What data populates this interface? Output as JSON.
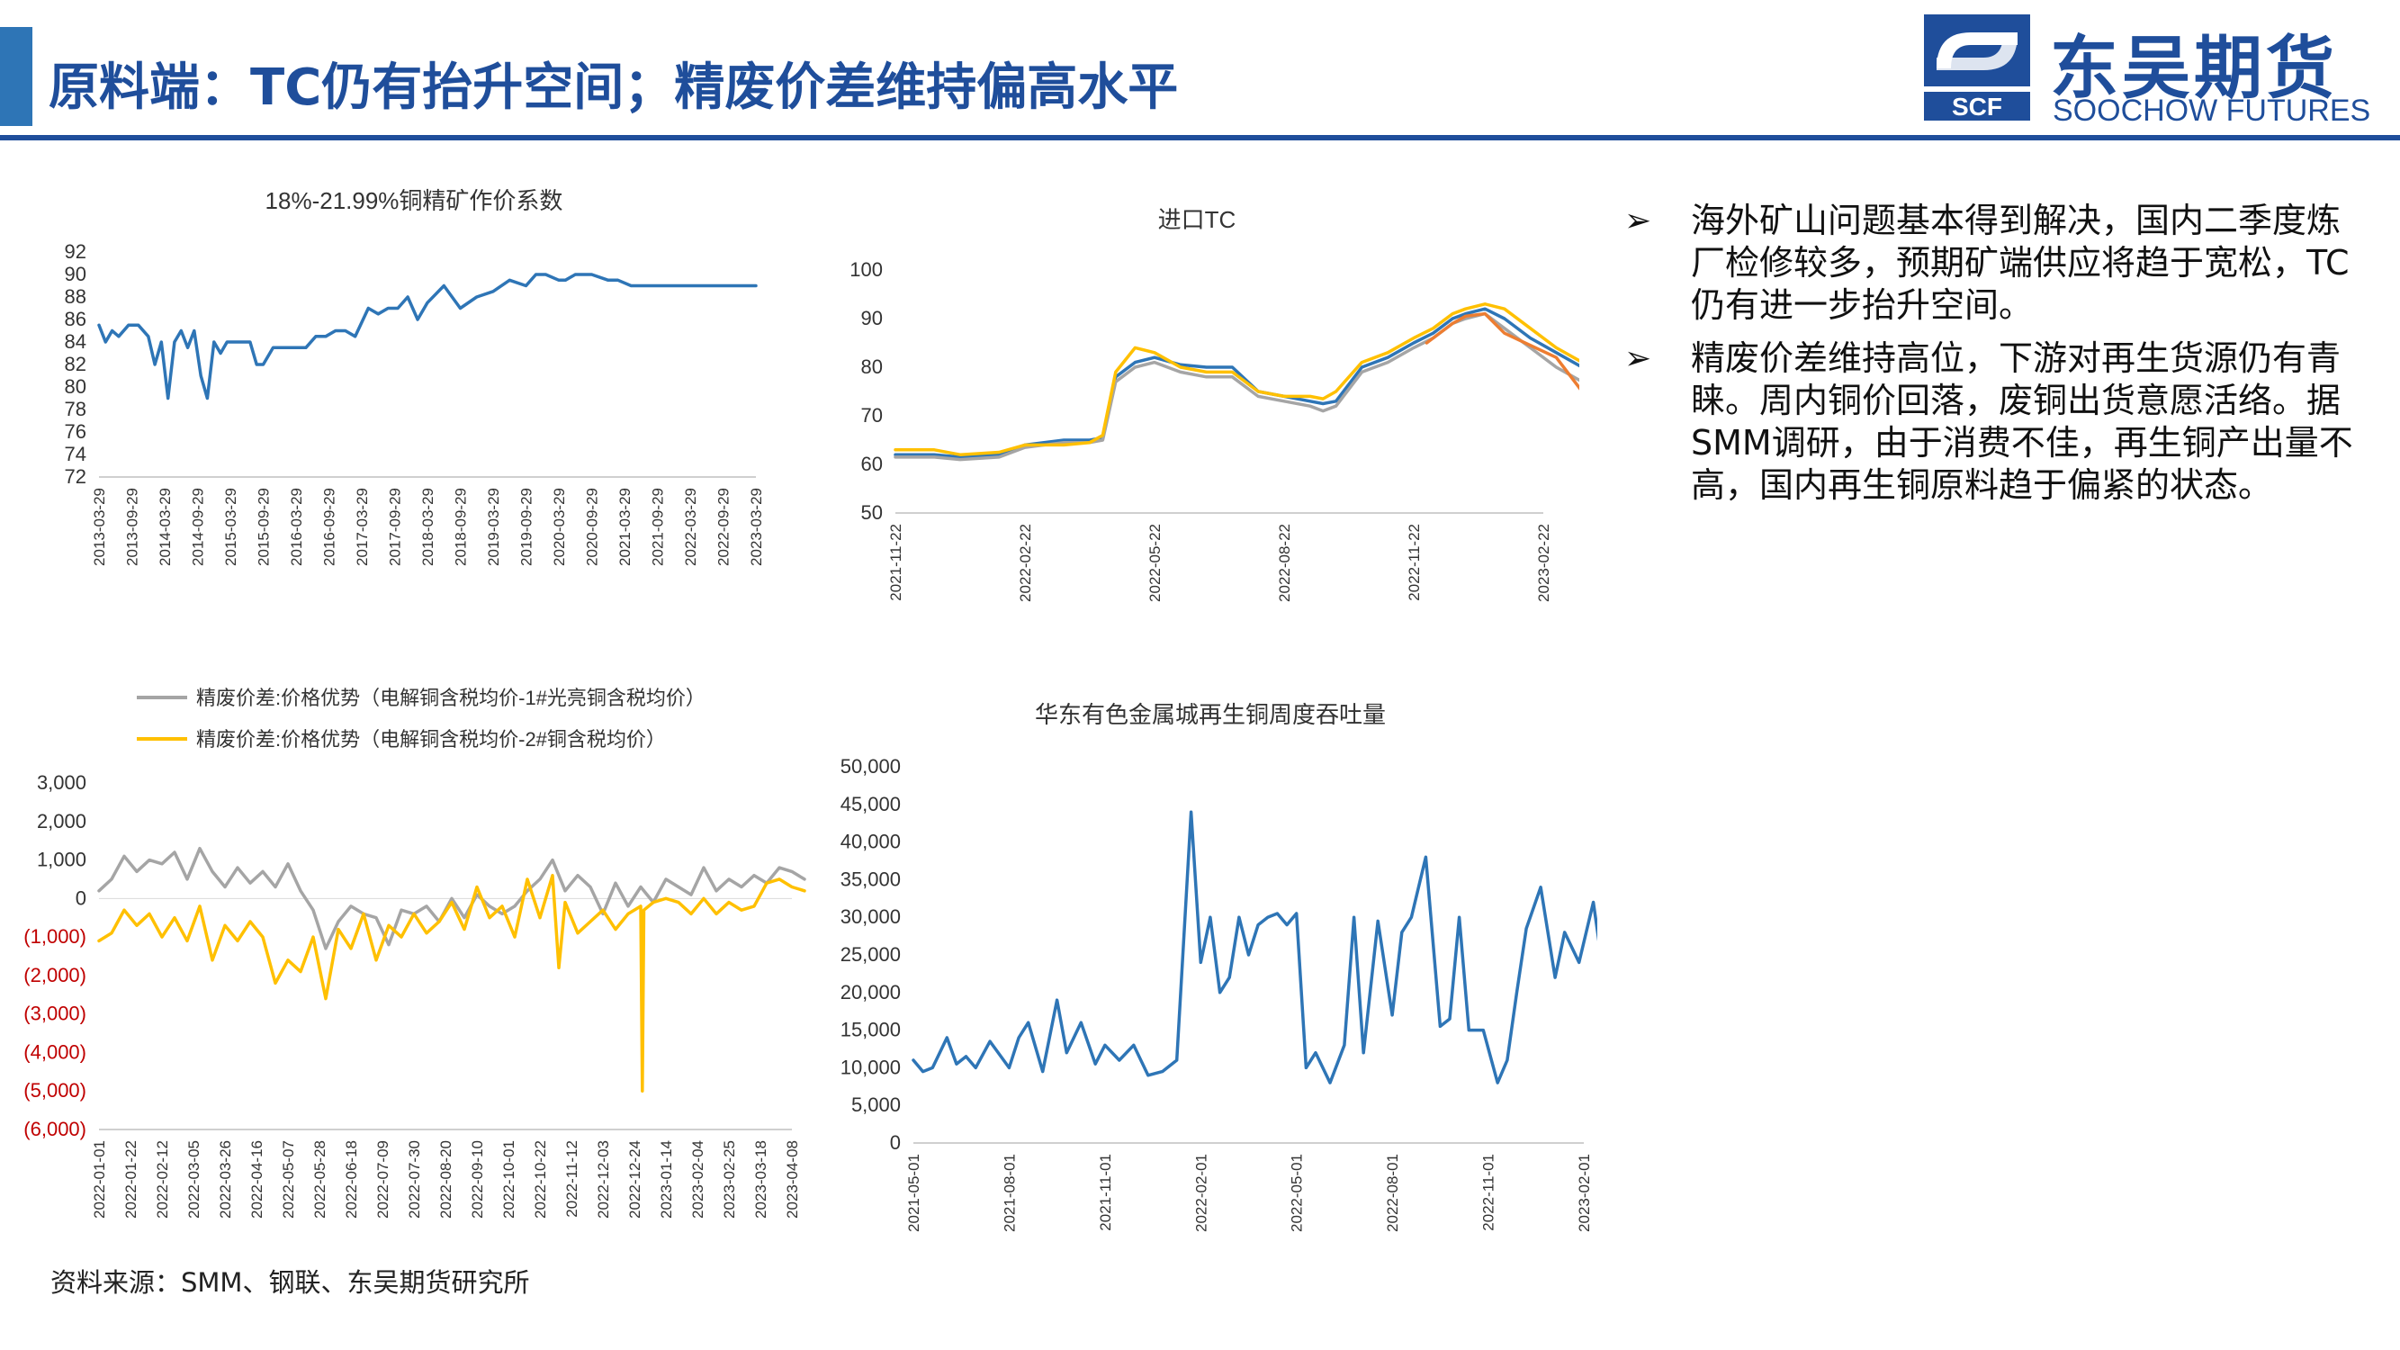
{
  "header": {
    "title": "原料端：TC仍有抬升空间；精废价差维持偏高水平",
    "logo_cn": "东吴期货",
    "logo_en": "SOOCHOW FUTURES",
    "logo_badge": "SCF"
  },
  "colors": {
    "brand": "#1f4e9b",
    "accent": "#2e75b6",
    "series_blue": "#2e75b6",
    "series_gray": "#a5a5a5",
    "series_yellow": "#ffc000",
    "series_orange": "#ed7d31",
    "negative": "#c00000"
  },
  "bullets": [
    "海外矿山问题基本得到解决，国内二季度炼厂检修较多，预期矿端供应将趋于宽松，TC仍有进一步抬升空间。",
    "精废价差维持高位，下游对再生货源仍有青睐。周内铜价回落，废铜出货意愿活络。据SMM调研，由于消费不佳，再生铜产出量不高，国内再生铜原料趋于偏紧的状态。"
  ],
  "source": "资料来源：SMM、钢联、东吴期货研究所",
  "chart_data": [
    {
      "id": "chart1",
      "type": "line",
      "title": "18%-21.99%铜精矿作价系数",
      "ylim": [
        72,
        92
      ],
      "yticks": [
        "92",
        "90",
        "88",
        "86",
        "84",
        "82",
        "80",
        "78",
        "76",
        "74",
        "72"
      ],
      "xticks": [
        "2013-03-29",
        "2013-09-29",
        "2014-03-29",
        "2014-09-29",
        "2015-03-29",
        "2015-09-29",
        "2016-03-29",
        "2016-09-29",
        "2017-03-29",
        "2017-09-29",
        "2018-03-29",
        "2018-09-29",
        "2019-03-29",
        "2019-09-29",
        "2020-03-29",
        "2020-09-29",
        "2021-03-29",
        "2021-09-29",
        "2022-03-29",
        "2022-09-29",
        "2023-03-29"
      ],
      "series": [
        {
          "color": "#2e75b6",
          "x": [
            0,
            0.2,
            0.4,
            0.6,
            0.9,
            1.2,
            1.5,
            1.7,
            1.9,
            2.1,
            2.3,
            2.5,
            2.7,
            2.9,
            3.1,
            3.3,
            3.5,
            3.7,
            3.9,
            4.1,
            4.3,
            4.6,
            4.8,
            5.0,
            5.3,
            5.6,
            5.8,
            6.0,
            6.3,
            6.6,
            6.9,
            7.2,
            7.5,
            7.8,
            8.2,
            8.5,
            8.8,
            9.1,
            9.4,
            9.7,
            10.0,
            10.5,
            11.0,
            11.5,
            12.0,
            12.5,
            13.0,
            13.3,
            13.6,
            14.0,
            14.2,
            14.5,
            15.0,
            15.5,
            15.8,
            16.2,
            16.5,
            17.0,
            17.5,
            18.0,
            18.5,
            19.0,
            19.4,
            19.8,
            20.0
          ],
          "y": [
            85.5,
            84,
            85,
            84.5,
            85.5,
            85.5,
            84.5,
            82,
            84,
            79,
            84,
            85,
            83.5,
            85,
            81,
            79,
            84,
            83,
            84,
            84,
            84,
            84,
            82,
            82,
            83.5,
            83.5,
            83.5,
            83.5,
            83.5,
            84.5,
            84.5,
            85,
            85,
            84.5,
            87,
            86.5,
            87,
            87,
            88,
            86,
            87.5,
            89,
            87,
            88,
            88.5,
            89.5,
            89,
            90,
            90,
            89.5,
            89.5,
            90,
            90,
            89.5,
            89.5,
            89,
            89,
            89,
            89,
            89,
            89,
            89,
            89,
            89,
            89
          ]
        }
      ]
    },
    {
      "id": "chart2",
      "type": "line",
      "title": "进口TC",
      "ylim": [
        50,
        100
      ],
      "yticks": [
        "100",
        "90",
        "80",
        "70",
        "60",
        "50"
      ],
      "xticks": [
        "2021-11-22",
        "2022-02-22",
        "2022-05-22",
        "2022-08-22",
        "2022-11-22",
        "2023-02-22"
      ],
      "series": [
        {
          "color": "#2e75b6",
          "name": "",
          "x": [
            0,
            0.3,
            0.5,
            0.8,
            1.0,
            1.3,
            1.5,
            1.6,
            1.7,
            1.85,
            2.0,
            2.2,
            2.4,
            2.6,
            2.8,
            3.0,
            3.2,
            3.3,
            3.4,
            3.6,
            3.8,
            4.0,
            4.15,
            4.3,
            4.4,
            4.55,
            4.7,
            4.9,
            5.1,
            5.3,
            5.5,
            5.6,
            5.65
          ],
          "y": [
            62,
            62,
            61.5,
            62,
            64,
            65,
            65,
            65.5,
            78,
            81,
            82,
            80.5,
            80,
            80,
            75,
            74,
            73,
            72.5,
            73,
            80,
            82,
            85,
            87,
            90,
            91,
            92,
            90,
            86,
            83,
            80,
            80,
            81,
            84
          ]
        },
        {
          "color": "#a5a5a5",
          "name": "",
          "x": [
            0,
            0.3,
            0.5,
            0.8,
            1.0,
            1.3,
            1.5,
            1.6,
            1.7,
            1.85,
            2.0,
            2.2,
            2.4,
            2.6,
            2.8,
            3.0,
            3.2,
            3.3,
            3.4,
            3.6,
            3.8,
            4.0,
            4.15,
            4.3,
            4.4,
            4.55,
            4.7,
            4.9,
            5.1,
            5.3,
            5.5,
            5.6,
            5.65
          ],
          "y": [
            61.5,
            61.5,
            61,
            61.5,
            63.5,
            64.5,
            64.5,
            65,
            77,
            80,
            81,
            79,
            78,
            78,
            74,
            73,
            72,
            71,
            72,
            79,
            81,
            84,
            86,
            89,
            90,
            91,
            88,
            84,
            80,
            77,
            77,
            79,
            82
          ]
        },
        {
          "color": "#ffc000",
          "name": "",
          "x": [
            0,
            0.3,
            0.5,
            0.8,
            1.0,
            1.3,
            1.5,
            1.6,
            1.7,
            1.85,
            2.0,
            2.2,
            2.4,
            2.6,
            2.8,
            3.0,
            3.2,
            3.3,
            3.4,
            3.6,
            3.8,
            4.0,
            4.15,
            4.3,
            4.4,
            4.55,
            4.7,
            4.9,
            5.1,
            5.3,
            5.5,
            5.6,
            5.65
          ],
          "y": [
            63,
            63,
            62,
            62.5,
            64,
            64,
            64.5,
            66,
            79,
            84,
            83,
            80,
            79,
            79,
            75,
            74,
            74,
            73.5,
            75,
            81,
            83,
            86,
            88,
            91,
            92,
            93,
            92,
            88,
            84,
            81,
            81,
            83,
            85
          ]
        },
        {
          "color": "#ed7d31",
          "name": "",
          "x": [
            4.1,
            4.3,
            4.4,
            4.55,
            4.7,
            5.1,
            5.3,
            5.5,
            5.6,
            5.65
          ],
          "y": [
            85,
            89,
            90.5,
            91,
            87,
            82,
            75,
            78,
            81,
            83
          ]
        }
      ]
    },
    {
      "id": "chart3",
      "type": "line",
      "title": "",
      "ylim": [
        -6000,
        3000
      ],
      "yticks": [
        "3,000",
        "2,000",
        "1,000",
        "0",
        "(1,000)",
        "(2,000)",
        "(3,000)",
        "(4,000)",
        "(5,000)",
        "(6,000)"
      ],
      "xticks": [
        "2022-01-01",
        "2022-01-22",
        "2022-02-12",
        "2022-03-05",
        "2022-03-26",
        "2022-04-16",
        "2022-05-07",
        "2022-05-28",
        "2022-06-18",
        "2022-07-09",
        "2022-07-30",
        "2022-08-20",
        "2022-09-10",
        "2022-10-01",
        "2022-10-22",
        "2022-11-12",
        "2022-12-03",
        "2022-12-24",
        "2023-01-14",
        "2023-02-04",
        "2023-02-25",
        "2023-03-18",
        "2023-04-08"
      ],
      "legend": [
        {
          "label": "精废价差:价格优势（电解铜含税均价-1#光亮铜含税均价）",
          "color": "#a5a5a5"
        },
        {
          "label": "精废价差:价格优势（电解铜含税均价-2#铜含税均价）",
          "color": "#ffc000"
        }
      ],
      "series": [
        {
          "color": "#a5a5a5",
          "name": "精废价差:价格优势（电解铜含税均价-1#光亮铜含税均价）",
          "x": [
            0,
            0.4,
            0.8,
            1.2,
            1.6,
            2.0,
            2.4,
            2.8,
            3.2,
            3.6,
            4.0,
            4.4,
            4.8,
            5.2,
            5.6,
            6.0,
            6.4,
            6.8,
            7.2,
            7.6,
            8.0,
            8.4,
            8.8,
            9.2,
            9.6,
            10.0,
            10.4,
            10.8,
            11.2,
            11.6,
            12.0,
            12.4,
            12.8,
            13.2,
            13.6,
            14.0,
            14.4,
            14.8,
            15.2,
            15.6,
            16.0,
            16.4,
            16.8,
            17.2,
            17.6,
            18.0,
            18.4,
            18.8,
            19.2,
            19.6,
            20.0,
            20.4,
            20.8,
            21.2,
            21.6,
            22.0,
            22.4
          ],
          "y": [
            200,
            500,
            1100,
            700,
            1000,
            900,
            1200,
            500,
            1300,
            700,
            300,
            800,
            400,
            700,
            300,
            900,
            200,
            -300,
            -1300,
            -600,
            -200,
            -400,
            -500,
            -1200,
            -300,
            -400,
            -200,
            -600,
            0,
            -500,
            100,
            -200,
            -400,
            -200,
            200,
            500,
            1000,
            200,
            600,
            300,
            -400,
            400,
            -200,
            300,
            -100,
            500,
            300,
            100,
            800,
            200,
            500,
            300,
            600,
            400,
            800,
            700,
            500
          ]
        },
        {
          "color": "#ffc000",
          "name": "精废价差:价格优势（电解铜含税均价-2#铜含税均价）",
          "x": [
            0,
            0.4,
            0.8,
            1.2,
            1.6,
            2.0,
            2.4,
            2.8,
            3.2,
            3.6,
            4.0,
            4.4,
            4.8,
            5.2,
            5.6,
            6.0,
            6.4,
            6.8,
            7.2,
            7.6,
            8.0,
            8.4,
            8.8,
            9.2,
            9.6,
            10.0,
            10.4,
            10.8,
            11.2,
            11.6,
            12.0,
            12.4,
            12.8,
            13.2,
            13.6,
            14.0,
            14.4,
            14.6,
            14.8,
            15.2,
            15.6,
            16.0,
            16.4,
            16.8,
            17.2,
            17.25,
            17.3,
            17.6,
            18.0,
            18.4,
            18.8,
            19.2,
            19.6,
            20.0,
            20.4,
            20.8,
            21.2,
            21.6,
            22.0,
            22.4
          ],
          "y": [
            -1100,
            -900,
            -300,
            -700,
            -400,
            -1000,
            -500,
            -1100,
            -200,
            -1600,
            -700,
            -1100,
            -600,
            -1000,
            -2200,
            -1600,
            -1900,
            -1000,
            -2600,
            -800,
            -1300,
            -400,
            -1600,
            -700,
            -1000,
            -400,
            -900,
            -600,
            -100,
            -800,
            300,
            -500,
            -200,
            -1000,
            500,
            -500,
            600,
            -1800,
            -100,
            -900,
            -600,
            -300,
            -800,
            -400,
            -200,
            -5000,
            -300,
            -100,
            0,
            -100,
            -400,
            0,
            -400,
            -100,
            -300,
            -200,
            400,
            500,
            300,
            200
          ]
        }
      ]
    },
    {
      "id": "chart4",
      "type": "line",
      "title": "华东有色金属城再生铜周度吞吐量",
      "ylim": [
        0,
        50000
      ],
      "yticks": [
        "50,000",
        "45,000",
        "40,000",
        "35,000",
        "30,000",
        "25,000",
        "20,000",
        "15,000",
        "10,000",
        "5,000",
        "0"
      ],
      "xticks": [
        "2021-05-01",
        "2021-08-01",
        "2021-11-01",
        "2022-02-01",
        "2022-05-01",
        "2022-08-01",
        "2022-11-01",
        "2023-02-01"
      ],
      "series": [
        {
          "color": "#2e75b6",
          "name": "",
          "x": [
            0,
            0.1,
            0.2,
            0.35,
            0.45,
            0.55,
            0.65,
            0.8,
            1.0,
            1.1,
            1.2,
            1.35,
            1.5,
            1.6,
            1.75,
            1.9,
            2.0,
            2.15,
            2.3,
            2.45,
            2.6,
            2.75,
            2.9,
            3.0,
            3.1,
            3.2,
            3.3,
            3.4,
            3.5,
            3.6,
            3.7,
            3.8,
            3.9,
            4.0,
            4.1,
            4.2,
            4.35,
            4.5,
            4.6,
            4.7,
            4.85,
            5.0,
            5.1,
            5.2,
            5.35,
            5.5,
            5.6,
            5.7,
            5.8,
            5.95,
            6.1,
            6.2,
            6.3,
            6.4,
            6.55,
            6.7,
            6.8,
            6.95,
            7.1,
            7.2,
            7.3,
            7.45,
            7.55,
            7.65,
            7.75
          ],
          "y": [
            11000,
            9500,
            10000,
            14000,
            10500,
            11500,
            10000,
            13500,
            10000,
            14000,
            16000,
            9500,
            19000,
            12000,
            16000,
            10500,
            13000,
            11000,
            13000,
            9000,
            9500,
            11000,
            44000,
            24000,
            30000,
            20000,
            22000,
            30000,
            25000,
            29000,
            30000,
            30500,
            29000,
            30500,
            10000,
            12000,
            8000,
            13000,
            30000,
            12000,
            29500,
            17000,
            28000,
            30000,
            38000,
            15500,
            16500,
            30000,
            15000,
            15000,
            8000,
            11000,
            20000,
            28500,
            34000,
            22000,
            28000,
            24000,
            32000,
            23000,
            27500,
            29000,
            30000,
            25000,
            27000
          ]
        }
      ]
    }
  ]
}
